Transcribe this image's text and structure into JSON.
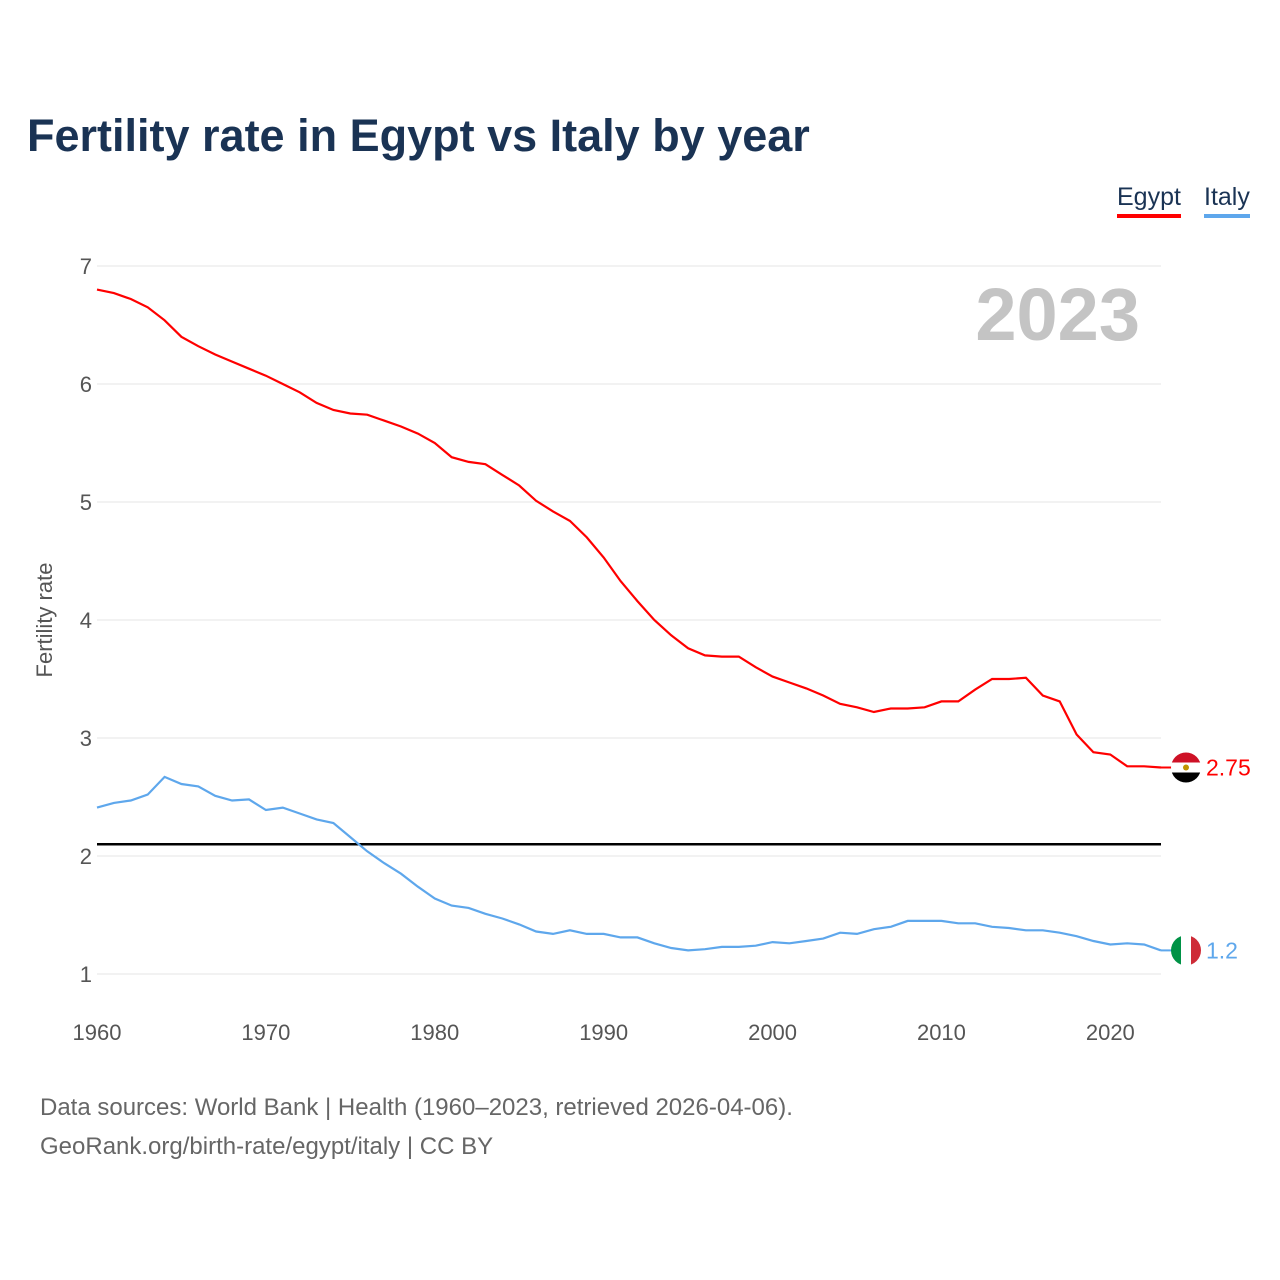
{
  "chart_data": {
    "type": "line",
    "title": "Fertility rate in Egypt vs Italy by year",
    "xlabel": "",
    "ylabel": "Fertility rate",
    "xlim": [
      1960,
      2023
    ],
    "ylim": [
      1,
      7
    ],
    "xticks": [
      1960,
      1970,
      1980,
      1990,
      2000,
      2010,
      2020
    ],
    "yticks": [
      1,
      2,
      3,
      4,
      5,
      6,
      7
    ],
    "grid": true,
    "legend_position": "top-right",
    "year_label": "2023",
    "reference_line": 2.1,
    "x": [
      1960,
      1961,
      1962,
      1963,
      1964,
      1965,
      1966,
      1967,
      1968,
      1969,
      1970,
      1971,
      1972,
      1973,
      1974,
      1975,
      1976,
      1977,
      1978,
      1979,
      1980,
      1981,
      1982,
      1983,
      1984,
      1985,
      1986,
      1987,
      1988,
      1989,
      1990,
      1991,
      1992,
      1993,
      1994,
      1995,
      1996,
      1997,
      1998,
      1999,
      2000,
      2001,
      2002,
      2003,
      2004,
      2005,
      2006,
      2007,
      2008,
      2009,
      2010,
      2011,
      2012,
      2013,
      2014,
      2015,
      2016,
      2017,
      2018,
      2019,
      2020,
      2021,
      2022,
      2023
    ],
    "series": [
      {
        "name": "Egypt",
        "color": "#ff0000",
        "end_label": "2.75",
        "values": [
          6.8,
          6.77,
          6.72,
          6.65,
          6.54,
          6.4,
          6.32,
          6.25,
          6.19,
          6.13,
          6.07,
          6.0,
          5.93,
          5.84,
          5.78,
          5.75,
          5.74,
          5.69,
          5.64,
          5.58,
          5.5,
          5.38,
          5.34,
          5.32,
          5.23,
          5.14,
          5.01,
          4.92,
          4.84,
          4.7,
          4.53,
          4.33,
          4.16,
          4.0,
          3.87,
          3.76,
          3.7,
          3.69,
          3.69,
          3.6,
          3.52,
          3.47,
          3.42,
          3.36,
          3.29,
          3.26,
          3.22,
          3.25,
          3.25,
          3.26,
          3.31,
          3.31,
          3.41,
          3.5,
          3.5,
          3.51,
          3.36,
          3.31,
          3.03,
          2.88,
          2.86,
          2.76,
          2.76,
          2.75
        ]
      },
      {
        "name": "Italy",
        "color": "#5ea7ec",
        "end_label": "1.2",
        "values": [
          2.41,
          2.45,
          2.47,
          2.52,
          2.67,
          2.61,
          2.59,
          2.51,
          2.47,
          2.48,
          2.39,
          2.41,
          2.36,
          2.31,
          2.28,
          2.16,
          2.04,
          1.94,
          1.85,
          1.74,
          1.64,
          1.58,
          1.56,
          1.51,
          1.47,
          1.42,
          1.36,
          1.34,
          1.37,
          1.34,
          1.34,
          1.31,
          1.31,
          1.26,
          1.22,
          1.2,
          1.21,
          1.23,
          1.23,
          1.24,
          1.27,
          1.26,
          1.28,
          1.3,
          1.35,
          1.34,
          1.38,
          1.4,
          1.45,
          1.45,
          1.45,
          1.43,
          1.43,
          1.4,
          1.39,
          1.37,
          1.37,
          1.35,
          1.32,
          1.28,
          1.25,
          1.26,
          1.25,
          1.2
        ]
      }
    ]
  },
  "source": {
    "line1": "Data sources: World Bank | Health (1960–2023, retrieved 2026-04-06).",
    "line2": "GeoRank.org/birth-rate/egypt/italy | CC BY"
  }
}
